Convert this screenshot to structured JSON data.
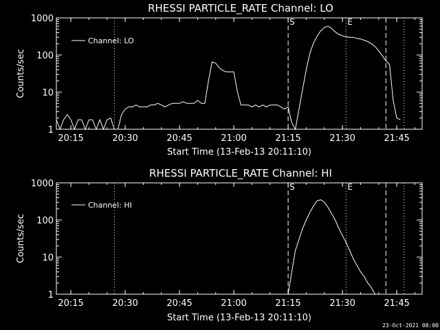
{
  "chart_data": [
    {
      "type": "line",
      "title": "RHESSI PARTICLE_RATE Channel: LO",
      "xlabel": "Start Time (13-Feb-13 20:11:10)",
      "ylabel": "Counts/sec",
      "y_scale": "log",
      "ylim": [
        1,
        1000
      ],
      "xlim": [
        "20:11",
        "21:52"
      ],
      "x_ticks": [
        "20:15",
        "20:30",
        "20:45",
        "21:00",
        "21:15",
        "21:30",
        "21:45"
      ],
      "y_ticks": [
        "1",
        "10",
        "100",
        "1000"
      ],
      "legend": {
        "entries": [
          "Channel: LO"
        ],
        "placement": "top-left"
      },
      "grid": false,
      "line_color": "#ffffff",
      "markers": [
        {
          "time": "20:27",
          "style": "dotted",
          "label": ""
        },
        {
          "time": "21:15",
          "style": "dashed",
          "label": "S"
        },
        {
          "time": "21:31",
          "style": "dotted",
          "label": "E"
        },
        {
          "time": "21:42",
          "style": "dashed",
          "label": ""
        },
        {
          "time": "21:47",
          "style": "dotted",
          "label": ""
        }
      ],
      "series": [
        {
          "name": "Channel: LO",
          "x": [
            "20:11",
            "20:12",
            "20:13",
            "20:14",
            "20:15",
            "20:16",
            "20:17",
            "20:18",
            "20:19",
            "20:20",
            "20:21",
            "20:22",
            "20:23",
            "20:24",
            "20:25",
            "20:26",
            "20:27",
            "20:28",
            "20:29",
            "20:30",
            "20:31",
            "20:32",
            "20:33",
            "20:34",
            "20:35",
            "20:36",
            "20:37",
            "20:38",
            "20:39",
            "20:40",
            "20:41",
            "20:42",
            "20:43",
            "20:44",
            "20:45",
            "20:46",
            "20:47",
            "20:48",
            "20:49",
            "20:50",
            "20:51",
            "20:52",
            "20:53",
            "20:54",
            "20:55",
            "20:56",
            "20:57",
            "20:58",
            "20:59",
            "21:00",
            "21:01",
            "21:02",
            "21:03",
            "21:04",
            "21:05",
            "21:06",
            "21:07",
            "21:08",
            "21:09",
            "21:10",
            "21:11",
            "21:12",
            "21:13",
            "21:14",
            "21:15",
            "21:16",
            "21:17",
            "21:18",
            "21:19",
            "21:20",
            "21:21",
            "21:22",
            "21:23",
            "21:24",
            "21:25",
            "21:26",
            "21:27",
            "21:28",
            "21:29",
            "21:30",
            "21:31",
            "21:32",
            "21:33",
            "21:34",
            "21:35",
            "21:36",
            "21:37",
            "21:38",
            "21:39",
            "21:40",
            "21:41",
            "21:42",
            "21:43",
            "21:44",
            "21:45",
            "21:46"
          ],
          "values": [
            1.8,
            1,
            1.8,
            2.5,
            1.8,
            1,
            1.8,
            1.8,
            1,
            1.8,
            1.8,
            1,
            1.8,
            1,
            1.8,
            2,
            1,
            1,
            2.5,
            3.5,
            4,
            4,
            4.5,
            4,
            4,
            4,
            4.5,
            4.5,
            5,
            4.5,
            4,
            4.5,
            5,
            5,
            5,
            5.5,
            5,
            5,
            5,
            6,
            5,
            5,
            20,
            65,
            60,
            45,
            38,
            35,
            35,
            35,
            10,
            4.5,
            4.5,
            4.5,
            4,
            4.5,
            4,
            4.5,
            4,
            4.5,
            4.5,
            4.5,
            4,
            3.5,
            4,
            1.5,
            1,
            3.5,
            12,
            40,
            110,
            210,
            320,
            450,
            550,
            600,
            520,
            420,
            360,
            330,
            310,
            300,
            300,
            280,
            270,
            250,
            230,
            200,
            170,
            130,
            95,
            70,
            55,
            6,
            2,
            1.8
          ]
        }
      ]
    },
    {
      "type": "line",
      "title": "RHESSI PARTICLE_RATE Channel: HI",
      "xlabel": "Start Time (13-Feb-13 20:11:10)",
      "ylabel": "Counts/sec",
      "y_scale": "log",
      "ylim": [
        1,
        1000
      ],
      "xlim": [
        "20:11",
        "21:52"
      ],
      "x_ticks": [
        "20:15",
        "20:30",
        "20:45",
        "21:00",
        "21:15",
        "21:30",
        "21:45"
      ],
      "y_ticks": [
        "1",
        "10",
        "100",
        "1000"
      ],
      "legend": {
        "entries": [
          "Channel: HI"
        ],
        "placement": "top-left"
      },
      "grid": false,
      "line_color": "#ffffff",
      "markers": [
        {
          "time": "20:27",
          "style": "dotted",
          "label": ""
        },
        {
          "time": "21:15",
          "style": "dashed",
          "label": "S"
        },
        {
          "time": "21:31",
          "style": "dotted",
          "label": "E"
        },
        {
          "time": "21:42",
          "style": "dashed",
          "label": ""
        },
        {
          "time": "21:47",
          "style": "dotted",
          "label": ""
        }
      ],
      "series": [
        {
          "name": "Channel: HI",
          "x": [
            "21:15",
            "21:16",
            "21:17",
            "21:18",
            "21:19",
            "21:20",
            "21:21",
            "21:22",
            "21:23",
            "21:24",
            "21:25",
            "21:26",
            "21:27",
            "21:28",
            "21:29",
            "21:30",
            "21:31",
            "21:32",
            "21:33",
            "21:34",
            "21:35",
            "21:36",
            "21:37",
            "21:38",
            "21:39"
          ],
          "values": [
            1,
            4,
            15,
            30,
            60,
            100,
            160,
            240,
            330,
            350,
            300,
            220,
            150,
            100,
            60,
            38,
            25,
            15,
            9,
            6,
            4,
            3,
            2,
            1.5,
            1
          ]
        }
      ]
    }
  ],
  "footer": {
    "timestamp": "23-Oct-2021 08:00"
  }
}
